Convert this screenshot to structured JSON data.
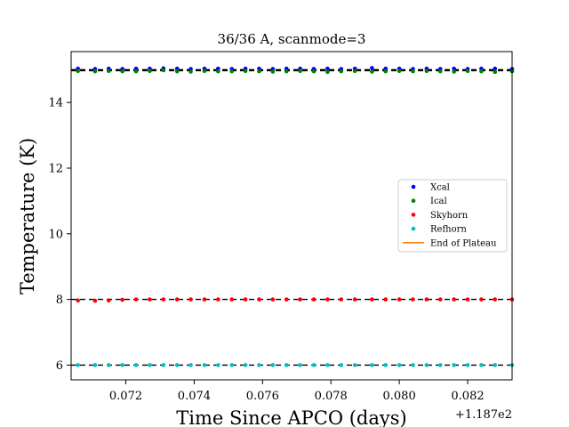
{
  "chart_data": {
    "type": "scatter",
    "title": "36/36 A, scanmode=3",
    "xlabel": "Time Since APCO (days)",
    "ylabel": "Temperature (K)",
    "x_offset_label": "+1.187e2",
    "xlim": [
      118.7704,
      118.7833
    ],
    "ylim": [
      5.55,
      15.55
    ],
    "x_ticks": [
      118.772,
      118.774,
      118.776,
      118.778,
      118.78,
      118.782
    ],
    "x_tick_labels": [
      "0.072",
      "0.074",
      "0.076",
      "0.078",
      "0.080",
      "0.082"
    ],
    "y_ticks": [
      6,
      8,
      10,
      12,
      14
    ],
    "y_tick_labels": [
      "6",
      "8",
      "10",
      "12",
      "14"
    ],
    "reference_lines": [
      15.0,
      14.97,
      8.0,
      6.0
    ],
    "legend_position": "center-right",
    "series": [
      {
        "name": "Xcal",
        "color": "#0000ff",
        "marker": "dot",
        "x": [
          118.7706,
          118.7711,
          118.7715,
          118.7719,
          118.7723,
          118.7727,
          118.7731,
          118.7735,
          118.7739,
          118.7743,
          118.7747,
          118.7751,
          118.7755,
          118.7759,
          118.7763,
          118.7767,
          118.7771,
          118.7775,
          118.7779,
          118.7783,
          118.7787,
          118.7792,
          118.7796,
          118.78,
          118.7804,
          118.7808,
          118.7812,
          118.7816,
          118.782,
          118.7824,
          118.7828,
          118.7833
        ],
        "y": [
          15.03,
          15.02,
          15.03,
          15.02,
          15.03,
          15.03,
          15.04,
          15.03,
          15.02,
          15.03,
          15.03,
          15.02,
          15.03,
          15.03,
          15.02,
          15.03,
          15.03,
          15.02,
          15.03,
          15.02,
          15.03,
          15.05,
          15.03,
          15.03,
          15.02,
          15.03,
          15.02,
          15.03,
          15.02,
          15.03,
          15.03,
          15.02
        ]
      },
      {
        "name": "Ical",
        "color": "#008000",
        "marker": "dot",
        "x": [
          118.7706,
          118.7711,
          118.7715,
          118.7719,
          118.7723,
          118.7727,
          118.7731,
          118.7735,
          118.7739,
          118.7743,
          118.7747,
          118.7751,
          118.7755,
          118.7759,
          118.7763,
          118.7767,
          118.7771,
          118.7775,
          118.7779,
          118.7783,
          118.7787,
          118.7792,
          118.7796,
          118.78,
          118.7804,
          118.7808,
          118.7812,
          118.7816,
          118.782,
          118.7824,
          118.7828,
          118.7833
        ],
        "y": [
          14.96,
          14.95,
          14.96,
          14.95,
          14.95,
          14.96,
          14.98,
          14.95,
          14.94,
          14.96,
          14.95,
          14.95,
          14.96,
          14.95,
          14.94,
          14.95,
          14.96,
          14.95,
          14.93,
          14.95,
          14.96,
          14.94,
          14.95,
          14.96,
          14.95,
          14.96,
          14.95,
          14.94,
          14.96,
          14.95,
          14.93,
          14.95
        ]
      },
      {
        "name": "Skyhorn",
        "color": "#ff0000",
        "marker": "dot",
        "x": [
          118.7706,
          118.7711,
          118.7715,
          118.7719,
          118.7723,
          118.7727,
          118.7731,
          118.7735,
          118.7739,
          118.7743,
          118.7747,
          118.7751,
          118.7755,
          118.7759,
          118.7763,
          118.7767,
          118.7771,
          118.7775,
          118.7779,
          118.7783,
          118.7787,
          118.7792,
          118.7796,
          118.78,
          118.7804,
          118.7808,
          118.7812,
          118.7816,
          118.782,
          118.7824,
          118.7828,
          118.7833
        ],
        "y": [
          7.97,
          7.96,
          7.97,
          7.99,
          8.0,
          8.0,
          8.0,
          8.0,
          8.0,
          8.0,
          8.0,
          8.0,
          8.0,
          8.0,
          8.0,
          8.0,
          8.0,
          8.0,
          8.0,
          8.0,
          8.0,
          8.0,
          8.0,
          8.0,
          8.0,
          8.0,
          8.0,
          8.0,
          8.0,
          8.0,
          8.0,
          8.0
        ]
      },
      {
        "name": "Refhorn",
        "color": "#00bfbf",
        "marker": "dot",
        "x": [
          118.7706,
          118.7711,
          118.7715,
          118.7719,
          118.7723,
          118.7727,
          118.7731,
          118.7735,
          118.7739,
          118.7743,
          118.7747,
          118.7751,
          118.7755,
          118.7759,
          118.7763,
          118.7767,
          118.7771,
          118.7775,
          118.7779,
          118.7783,
          118.7787,
          118.7792,
          118.7796,
          118.78,
          118.7804,
          118.7808,
          118.7812,
          118.7816,
          118.782,
          118.7824,
          118.7828,
          118.7833
        ],
        "y": [
          6.0,
          6.0,
          6.0,
          6.0,
          6.0,
          6.0,
          6.0,
          6.0,
          6.0,
          6.0,
          6.0,
          6.0,
          6.0,
          6.0,
          6.0,
          6.0,
          6.0,
          6.0,
          6.0,
          6.0,
          6.0,
          6.0,
          6.0,
          6.0,
          6.0,
          6.0,
          6.0,
          6.0,
          6.0,
          6.0,
          6.0,
          6.0
        ]
      }
    ],
    "legend": [
      {
        "label": "Xcal",
        "kind": "dot",
        "color": "#0000ff"
      },
      {
        "label": "Ical",
        "kind": "dot",
        "color": "#008000"
      },
      {
        "label": "Skyhorn",
        "kind": "dot",
        "color": "#ff0000"
      },
      {
        "label": "Refhorn",
        "kind": "dot",
        "color": "#00bfbf"
      },
      {
        "label": "End of Plateau",
        "kind": "line",
        "color": "#ff7f0e"
      }
    ]
  }
}
